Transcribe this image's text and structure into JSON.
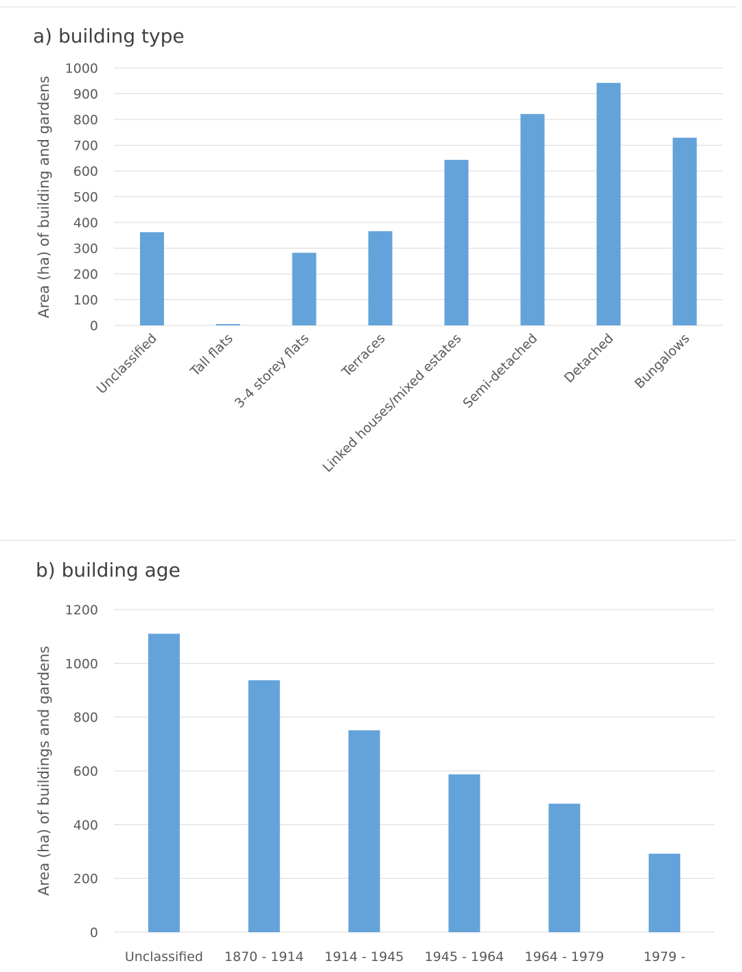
{
  "chart_data": [
    {
      "type": "bar",
      "title": "a) building type",
      "xlabel": "",
      "ylabel": "Area (ha) of building and gardens",
      "ylim": [
        0,
        1000
      ],
      "yticks": [
        0,
        100,
        200,
        300,
        400,
        500,
        600,
        700,
        800,
        900,
        1000
      ],
      "grid": true,
      "categories": [
        "Unclassified",
        "Tall flats",
        "3-4 storey flats",
        "Terraces",
        "Linked houses/mixed estates",
        "Semi-detached",
        "Detached",
        "Bungalows"
      ],
      "values": [
        362,
        5,
        282,
        366,
        643,
        821,
        942,
        729
      ],
      "color": "#64a3da"
    },
    {
      "type": "bar",
      "title": "b) building age",
      "xlabel": "",
      "ylabel": "Area (ha) of buildings and gardens",
      "ylim": [
        0,
        1200
      ],
      "yticks": [
        0,
        200,
        400,
        600,
        800,
        1000,
        1200
      ],
      "grid": true,
      "categories": [
        "Unclassified",
        "1870 - 1914",
        "1914 - 1945",
        "1945 - 1964",
        "1964 - 1979",
        "1979 -"
      ],
      "values": [
        1110,
        937,
        751,
        587,
        478,
        292
      ],
      "color": "#64a3da"
    }
  ]
}
